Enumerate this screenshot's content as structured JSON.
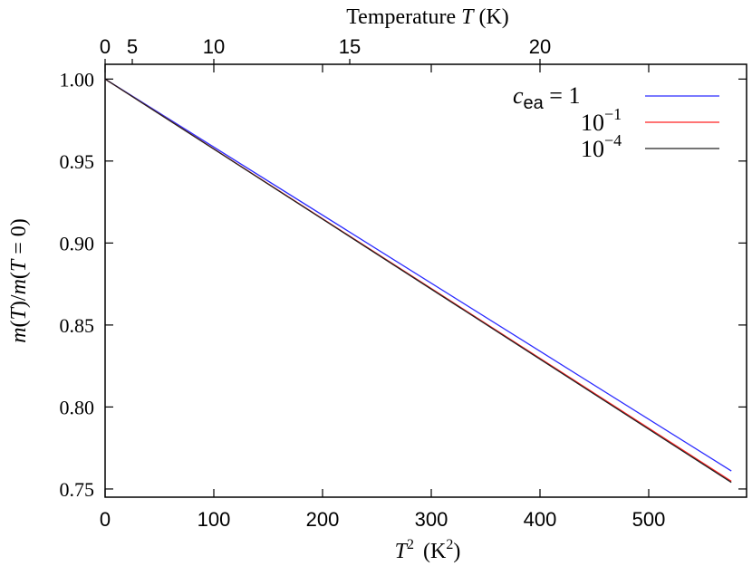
{
  "chart_data": {
    "type": "line",
    "xlabel": "T²  (K²)",
    "xlabel_parts": {
      "symbol": "T",
      "sup": "2",
      "unit_open": " (K",
      "unit_sup": "2",
      "unit_close": ")"
    },
    "ylabel": "m(T)/m(T = 0)",
    "top_axis_label": "Temperature T (K)",
    "top_axis_label_parts": {
      "text": "Temperature ",
      "symbol": "T",
      "unit": " (K)"
    },
    "xlim": [
      0,
      590
    ],
    "ylim": [
      0.745,
      1.009
    ],
    "x_ticks": [
      0,
      100,
      200,
      300,
      400,
      500
    ],
    "y_ticks": [
      0.75,
      0.8,
      0.85,
      0.9,
      0.95,
      1.0
    ],
    "y_tick_labels": [
      "0.75",
      "0.80",
      "0.85",
      "0.90",
      "0.95",
      "1.00"
    ],
    "top_ticks": [
      0,
      5,
      10,
      15,
      20
    ],
    "grid": false,
    "legend": {
      "position": "top-right",
      "title_symbol": "c",
      "title_subscript": "ea",
      "title_suffix": " = 1"
    },
    "series": [
      {
        "name": "c_ea = 1",
        "label_base": "",
        "label_exp": "",
        "color": "#2b2bff",
        "x": [
          0,
          576
        ],
        "y": [
          1.0,
          0.761
        ]
      },
      {
        "name": "10^-1",
        "label_base": "10",
        "label_exp": "−1",
        "color": "#ff2020",
        "x": [
          0,
          576
        ],
        "y": [
          1.0,
          0.7547
        ]
      },
      {
        "name": "10^-4",
        "label_base": "10",
        "label_exp": "−4",
        "color": "#222222",
        "x": [
          0,
          576
        ],
        "y": [
          1.0,
          0.754
        ]
      }
    ]
  }
}
